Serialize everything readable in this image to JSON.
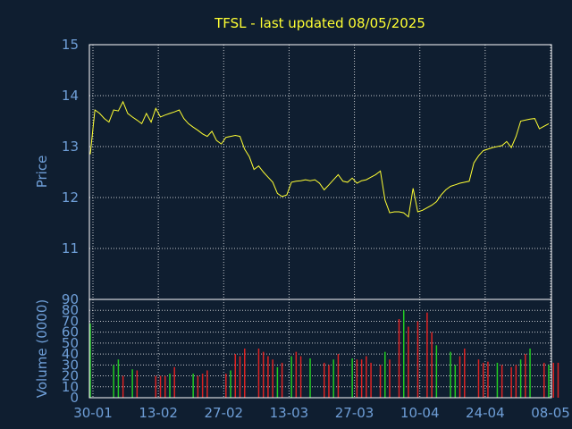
{
  "chart_data": [
    {
      "type": "line",
      "title": "TFSL - last updated 08/05/2025",
      "ylabel": "Price",
      "ylim": [
        11,
        15
      ],
      "yticks": [
        11,
        12,
        13,
        14,
        15
      ],
      "grid": true,
      "line_color": "#ffff33",
      "series": [
        {
          "values": [
            12.85,
            13.72,
            13.65,
            13.55,
            13.48,
            13.72,
            13.7,
            13.88,
            13.65,
            13.58,
            13.52,
            13.45,
            13.65,
            13.48,
            13.75,
            13.58,
            13.62,
            13.65,
            13.68,
            13.72,
            13.55,
            13.45,
            13.38,
            13.32,
            13.25,
            13.2,
            13.3,
            13.12,
            13.05,
            13.18,
            13.2,
            13.22,
            13.2,
            12.95,
            12.8,
            12.55,
            12.62,
            12.5,
            12.4,
            12.3,
            12.08,
            12.02,
            12.05,
            12.3,
            12.32,
            12.33,
            12.35,
            12.33,
            12.35,
            12.28,
            12.15,
            12.25,
            12.35,
            12.45,
            12.32,
            12.3,
            12.38,
            12.28,
            12.33,
            12.35,
            12.4,
            12.45,
            12.52,
            11.95,
            11.7,
            11.72,
            11.72,
            11.7,
            11.62,
            12.18,
            11.72,
            11.75,
            11.8,
            11.85,
            11.92,
            12.05,
            12.15,
            12.22,
            12.25,
            12.28,
            12.3,
            12.32,
            12.68,
            12.82,
            12.92,
            12.95,
            12.98,
            13.0,
            13.02,
            13.1,
            12.98,
            13.2,
            13.5,
            13.52,
            13.54,
            13.55,
            13.35,
            13.4,
            13.45
          ]
        }
      ]
    },
    {
      "type": "bar",
      "ylabel": "Volume (0000)",
      "ylim": [
        0,
        90
      ],
      "yticks": [
        0,
        10,
        20,
        30,
        40,
        50,
        60,
        70,
        80,
        90
      ],
      "grid": true,
      "x_tick_labels": [
        "30-01",
        "13-02",
        "27-02",
        "13-03",
        "27-03",
        "10-04",
        "24-04",
        "08-05"
      ],
      "bar_colors": {
        "up": "#22cc22",
        "down": "#dd2222"
      },
      "values": [
        68,
        0,
        0,
        0,
        0,
        30,
        35,
        20,
        0,
        26,
        25,
        0,
        0,
        0,
        20,
        20,
        20,
        22,
        28,
        0,
        0,
        0,
        22,
        20,
        22,
        25,
        0,
        0,
        0,
        22,
        25,
        40,
        38,
        45,
        0,
        0,
        45,
        42,
        38,
        35,
        28,
        32,
        0,
        38,
        42,
        38,
        0,
        36,
        0,
        0,
        32,
        30,
        35,
        40,
        0,
        0,
        36,
        35,
        35,
        38,
        32,
        0,
        30,
        42,
        35,
        0,
        72,
        80,
        65,
        0,
        70,
        0,
        78,
        60,
        48,
        0,
        0,
        42,
        30,
        38,
        45,
        0,
        0,
        35,
        32,
        33,
        0,
        32,
        30,
        0,
        28,
        30,
        35,
        40,
        45,
        0,
        0,
        32,
        30,
        32,
        32
      ],
      "directions": [
        "up",
        "up",
        "up",
        "up",
        "up",
        "up",
        "up",
        "down",
        "down",
        "up",
        "down",
        "down",
        "down",
        "down",
        "down",
        "down",
        "down",
        "up",
        "down",
        "down",
        "down",
        "down",
        "up",
        "down",
        "down",
        "down",
        "down",
        "down",
        "down",
        "down",
        "up",
        "down",
        "down",
        "down",
        "down",
        "down",
        "down",
        "down",
        "down",
        "down",
        "up",
        "down",
        "down",
        "up",
        "down",
        "down",
        "down",
        "up",
        "down",
        "down",
        "down",
        "down",
        "up",
        "down",
        "down",
        "down",
        "up",
        "down",
        "down",
        "down",
        "down",
        "down",
        "down",
        "up",
        "down",
        "down",
        "down",
        "up",
        "down",
        "down",
        "down",
        "up",
        "down",
        "down",
        "up",
        "down",
        "down",
        "up",
        "up",
        "down",
        "down",
        "down",
        "up",
        "down",
        "down",
        "down",
        "down",
        "up",
        "down",
        "down",
        "down",
        "down",
        "up",
        "down",
        "up",
        "up",
        "down",
        "down",
        "up",
        "down",
        "down"
      ]
    }
  ]
}
